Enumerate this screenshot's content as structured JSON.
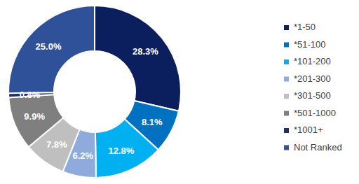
{
  "chart_data": {
    "type": "pie",
    "categories": [
      "*1-50",
      "*51-100",
      "*101-200",
      "*201-300",
      "*301-500",
      "*501-1000",
      "*1001+",
      "Not Ranked"
    ],
    "values": [
      28.3,
      8.1,
      12.8,
      6.2,
      7.8,
      9.9,
      0.8,
      25.0
    ],
    "value_labels": [
      "28.3%",
      "8.1%",
      "12.8%",
      "6.2%",
      "7.8%",
      "9.9%",
      "0.8%",
      "25.0%"
    ],
    "colors": [
      "#0b1f5e",
      "#0070c0",
      "#00b0f0",
      "#8faadc",
      "#bfbfbf",
      "#7f7f7f",
      "#1c2f6e",
      "#2f5199"
    ],
    "data_labels": true,
    "legend": "right"
  }
}
